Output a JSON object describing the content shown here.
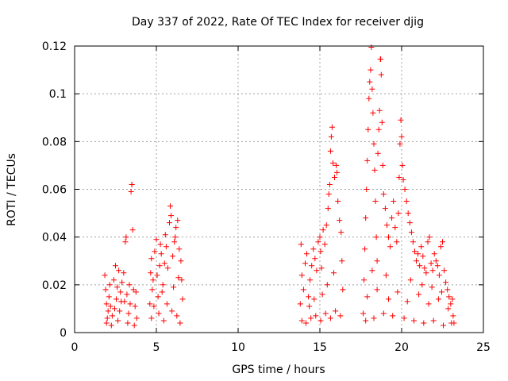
{
  "chart_data": {
    "type": "scatter",
    "title": "Day 337 of 2022, Rate Of TEC Index for receiver djig",
    "xlabel": "GPS time / hours",
    "ylabel": "ROTI / TECUs",
    "xlim": [
      0,
      25
    ],
    "ylim": [
      0,
      0.12
    ],
    "xticks": [
      0,
      5,
      10,
      15,
      20,
      25
    ],
    "xtick_labels": [
      "0",
      "5",
      "10",
      "15",
      "20",
      "25"
    ],
    "yticks": [
      0,
      0.02,
      0.04,
      0.06,
      0.08,
      0.1,
      0.12
    ],
    "ytick_labels": [
      "0",
      "0.02",
      "0.04",
      "0.06",
      "0.08",
      "0.1",
      "0.12"
    ],
    "grid": true,
    "marker": "+",
    "series_color": "#ff0000",
    "series": [
      {
        "name": "ROTI",
        "points": [
          [
            1.85,
            0.024
          ],
          [
            1.9,
            0.018
          ],
          [
            1.95,
            0.012
          ],
          [
            2.0,
            0.006
          ],
          [
            2.05,
            0.009
          ],
          [
            2.1,
            0.015
          ],
          [
            2.15,
            0.02
          ],
          [
            2.2,
            0.011
          ],
          [
            2.3,
            0.007
          ],
          [
            2.4,
            0.022
          ],
          [
            2.5,
            0.028
          ],
          [
            2.55,
            0.014
          ],
          [
            2.6,
            0.019
          ],
          [
            2.7,
            0.026
          ],
          [
            2.75,
            0.009
          ],
          [
            2.8,
            0.017
          ],
          [
            2.9,
            0.021
          ],
          [
            3.0,
            0.025
          ],
          [
            3.05,
            0.013
          ],
          [
            3.1,
            0.038
          ],
          [
            3.15,
            0.04
          ],
          [
            3.2,
            0.016
          ],
          [
            3.3,
            0.008
          ],
          [
            3.4,
            0.012
          ],
          [
            3.45,
            0.059
          ],
          [
            3.5,
            0.062
          ],
          [
            3.5,
            0.062
          ],
          [
            3.55,
            0.043
          ],
          [
            3.6,
            0.018
          ],
          [
            3.7,
            0.011
          ],
          [
            3.75,
            0.017
          ],
          [
            3.8,
            0.006
          ],
          [
            1.95,
            0.004
          ],
          [
            2.25,
            0.003
          ],
          [
            2.65,
            0.005
          ],
          [
            3.25,
            0.004
          ],
          [
            3.65,
            0.003
          ],
          [
            2.45,
            0.01
          ],
          [
            2.85,
            0.013
          ],
          [
            3.35,
            0.02
          ],
          [
            4.6,
            0.012
          ],
          [
            4.65,
            0.025
          ],
          [
            4.7,
            0.031
          ],
          [
            4.75,
            0.018
          ],
          [
            4.8,
            0.022
          ],
          [
            4.9,
            0.034
          ],
          [
            5.0,
            0.039
          ],
          [
            5.05,
            0.024
          ],
          [
            5.1,
            0.015
          ],
          [
            5.2,
            0.028
          ],
          [
            5.3,
            0.033
          ],
          [
            5.4,
            0.02
          ],
          [
            5.5,
            0.029
          ],
          [
            5.6,
            0.036
          ],
          [
            5.7,
            0.027
          ],
          [
            5.8,
            0.046
          ],
          [
            5.85,
            0.053
          ],
          [
            5.9,
            0.049
          ],
          [
            6.0,
            0.032
          ],
          [
            6.1,
            0.038
          ],
          [
            6.2,
            0.044
          ],
          [
            6.3,
            0.047
          ],
          [
            6.4,
            0.035
          ],
          [
            6.5,
            0.03
          ],
          [
            6.55,
            0.022
          ],
          [
            6.6,
            0.014
          ],
          [
            4.7,
            0.006
          ],
          [
            5.15,
            0.008
          ],
          [
            5.45,
            0.005
          ],
          [
            5.95,
            0.009
          ],
          [
            6.25,
            0.007
          ],
          [
            6.45,
            0.004
          ],
          [
            4.85,
            0.011
          ],
          [
            5.35,
            0.017
          ],
          [
            5.65,
            0.012
          ],
          [
            6.05,
            0.019
          ],
          [
            6.35,
            0.023
          ],
          [
            5.25,
            0.037
          ],
          [
            5.55,
            0.041
          ],
          [
            6.15,
            0.04
          ],
          [
            13.8,
            0.012
          ],
          [
            13.85,
            0.037
          ],
          [
            13.9,
            0.024
          ],
          [
            14.0,
            0.018
          ],
          [
            14.1,
            0.029
          ],
          [
            14.2,
            0.033
          ],
          [
            14.3,
            0.015
          ],
          [
            14.4,
            0.022
          ],
          [
            14.5,
            0.028
          ],
          [
            14.6,
            0.035
          ],
          [
            14.7,
            0.031
          ],
          [
            14.8,
            0.026
          ],
          [
            14.9,
            0.038
          ],
          [
            15.0,
            0.04
          ],
          [
            15.05,
            0.034
          ],
          [
            15.1,
            0.027
          ],
          [
            15.2,
            0.043
          ],
          [
            15.3,
            0.037
          ],
          [
            15.4,
            0.045
          ],
          [
            15.5,
            0.052
          ],
          [
            15.55,
            0.058
          ],
          [
            15.6,
            0.062
          ],
          [
            15.65,
            0.076
          ],
          [
            15.7,
            0.082
          ],
          [
            15.75,
            0.086
          ],
          [
            15.8,
            0.071
          ],
          [
            15.9,
            0.065
          ],
          [
            16.0,
            0.07
          ],
          [
            16.05,
            0.067
          ],
          [
            16.1,
            0.055
          ],
          [
            16.2,
            0.047
          ],
          [
            16.3,
            0.042
          ],
          [
            16.35,
            0.03
          ],
          [
            16.4,
            0.018
          ],
          [
            13.9,
            0.005
          ],
          [
            14.15,
            0.004
          ],
          [
            14.45,
            0.006
          ],
          [
            14.75,
            0.007
          ],
          [
            15.05,
            0.005
          ],
          [
            15.35,
            0.008
          ],
          [
            15.65,
            0.006
          ],
          [
            15.95,
            0.009
          ],
          [
            16.25,
            0.007
          ],
          [
            14.35,
            0.011
          ],
          [
            14.65,
            0.014
          ],
          [
            15.15,
            0.016
          ],
          [
            15.45,
            0.02
          ],
          [
            15.85,
            0.025
          ],
          [
            17.65,
            0.008
          ],
          [
            17.7,
            0.022
          ],
          [
            17.75,
            0.035
          ],
          [
            17.8,
            0.048
          ],
          [
            17.85,
            0.06
          ],
          [
            17.9,
            0.072
          ],
          [
            17.95,
            0.085
          ],
          [
            18.0,
            0.098
          ],
          [
            18.05,
            0.105
          ],
          [
            18.1,
            0.11
          ],
          [
            18.15,
            0.1195
          ],
          [
            18.2,
            0.102
          ],
          [
            18.25,
            0.092
          ],
          [
            18.3,
            0.079
          ],
          [
            18.35,
            0.068
          ],
          [
            18.4,
            0.055
          ],
          [
            18.45,
            0.04
          ],
          [
            18.5,
            0.03
          ],
          [
            18.55,
            0.075
          ],
          [
            18.6,
            0.085
          ],
          [
            18.65,
            0.093
          ],
          [
            18.7,
            0.1145
          ],
          [
            18.72,
            0.1145
          ],
          [
            18.75,
            0.108
          ],
          [
            18.8,
            0.088
          ],
          [
            18.85,
            0.07
          ],
          [
            18.9,
            0.058
          ],
          [
            19.0,
            0.052
          ],
          [
            19.1,
            0.045
          ],
          [
            19.2,
            0.04
          ],
          [
            19.3,
            0.036
          ],
          [
            19.4,
            0.048
          ],
          [
            19.5,
            0.055
          ],
          [
            19.6,
            0.044
          ],
          [
            19.7,
            0.038
          ],
          [
            19.8,
            0.05
          ],
          [
            19.85,
            0.065
          ],
          [
            19.9,
            0.079
          ],
          [
            19.95,
            0.089
          ],
          [
            20.0,
            0.082
          ],
          [
            20.05,
            0.07
          ],
          [
            20.1,
            0.064
          ],
          [
            20.2,
            0.06
          ],
          [
            20.3,
            0.055
          ],
          [
            20.4,
            0.05
          ],
          [
            20.5,
            0.046
          ],
          [
            20.6,
            0.042
          ],
          [
            20.7,
            0.038
          ],
          [
            20.8,
            0.034
          ],
          [
            20.9,
            0.03
          ],
          [
            21.0,
            0.033
          ],
          [
            21.1,
            0.028
          ],
          [
            21.2,
            0.036
          ],
          [
            21.3,
            0.032
          ],
          [
            21.4,
            0.027
          ],
          [
            21.5,
            0.025
          ],
          [
            21.6,
            0.038
          ],
          [
            21.7,
            0.04
          ],
          [
            21.8,
            0.029
          ],
          [
            21.9,
            0.026
          ],
          [
            22.0,
            0.033
          ],
          [
            22.1,
            0.03
          ],
          [
            22.2,
            0.028
          ],
          [
            22.3,
            0.024
          ],
          [
            22.4,
            0.036
          ],
          [
            22.5,
            0.038
          ],
          [
            22.6,
            0.026
          ],
          [
            22.7,
            0.021
          ],
          [
            22.8,
            0.018
          ],
          [
            22.9,
            0.015
          ],
          [
            23.0,
            0.012
          ],
          [
            23.1,
            0.014
          ],
          [
            23.15,
            0.007
          ],
          [
            23.2,
            0.004
          ],
          [
            17.8,
            0.005
          ],
          [
            18.3,
            0.006
          ],
          [
            18.9,
            0.008
          ],
          [
            19.45,
            0.007
          ],
          [
            20.15,
            0.006
          ],
          [
            20.75,
            0.005
          ],
          [
            21.35,
            0.004
          ],
          [
            21.95,
            0.005
          ],
          [
            22.55,
            0.003
          ],
          [
            23.05,
            0.004
          ],
          [
            17.9,
            0.015
          ],
          [
            18.5,
            0.018
          ],
          [
            19.2,
            0.014
          ],
          [
            19.75,
            0.017
          ],
          [
            20.35,
            0.013
          ],
          [
            21.05,
            0.016
          ],
          [
            21.65,
            0.012
          ],
          [
            22.25,
            0.014
          ],
          [
            22.85,
            0.01
          ],
          [
            18.2,
            0.026
          ],
          [
            19.05,
            0.024
          ],
          [
            20.55,
            0.022
          ],
          [
            21.25,
            0.02
          ],
          [
            21.85,
            0.019
          ],
          [
            22.45,
            0.017
          ]
        ]
      }
    ]
  }
}
